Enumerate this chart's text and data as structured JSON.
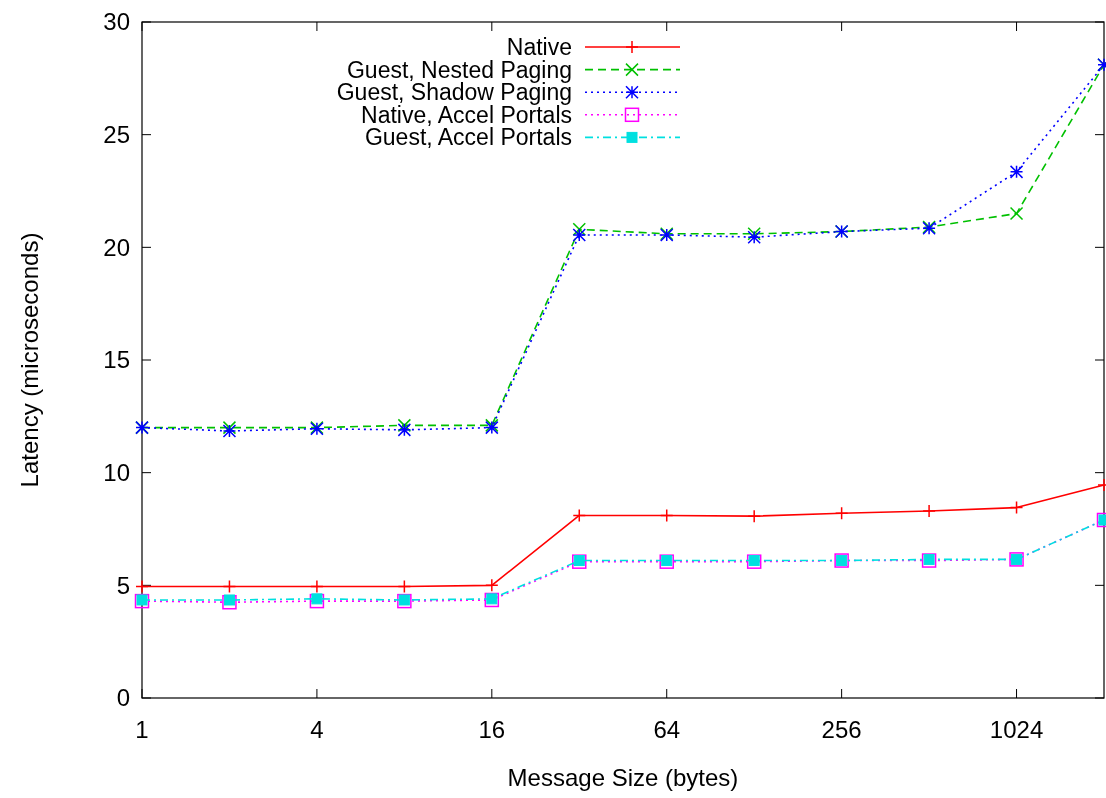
{
  "chart_data": {
    "type": "line",
    "xlabel": "Message Size (bytes)",
    "ylabel": "Latency (microseconds)",
    "log": "x",
    "xlim": [
      1,
      2048
    ],
    "xticks": [
      1,
      4,
      16,
      64,
      256,
      1024
    ],
    "ylim": [
      0,
      30
    ],
    "yticks": [
      0,
      5,
      10,
      15,
      20,
      25,
      30
    ],
    "grid": false,
    "legend": "top",
    "x": [
      1,
      2,
      4,
      8,
      16,
      32,
      64,
      128,
      256,
      512,
      1024,
      2048
    ],
    "series": [
      {
        "name": "Native",
        "color": "#ff0000",
        "marker": "plus",
        "line_style": "solid",
        "values": [
          4.95,
          4.95,
          4.95,
          4.95,
          5.0,
          8.1,
          8.1,
          8.07,
          8.2,
          8.3,
          8.45,
          9.45
        ]
      },
      {
        "name": "Guest, Nested Paging",
        "color": "#00c000",
        "marker": "cross",
        "line_style": "dashed",
        "values": [
          12.0,
          12.0,
          12.0,
          12.1,
          12.1,
          20.8,
          20.6,
          20.6,
          20.7,
          20.9,
          21.5,
          28.1
        ]
      },
      {
        "name": "Guest, Shadow Paging",
        "color": "#0000ff",
        "marker": "cross",
        "line_style": "dotted",
        "values": [
          12.0,
          11.85,
          11.95,
          11.9,
          12.0,
          20.55,
          20.55,
          20.45,
          20.7,
          20.85,
          23.35,
          28.1
        ]
      },
      {
        "name": "Native, Accel Portals",
        "color": "#ff00ff",
        "marker": "square",
        "line_style": "dotted",
        "values": [
          4.3,
          4.25,
          4.3,
          4.3,
          4.35,
          6.05,
          6.05,
          6.05,
          6.1,
          6.1,
          6.15,
          7.9
        ]
      },
      {
        "name": "Guest, Accel Portals",
        "color": "#00e0e0",
        "marker": "square",
        "line_style": "dashdot",
        "values": [
          4.35,
          4.35,
          4.4,
          4.35,
          4.4,
          6.1,
          6.1,
          6.1,
          6.1,
          6.15,
          6.15,
          7.9
        ]
      }
    ]
  }
}
